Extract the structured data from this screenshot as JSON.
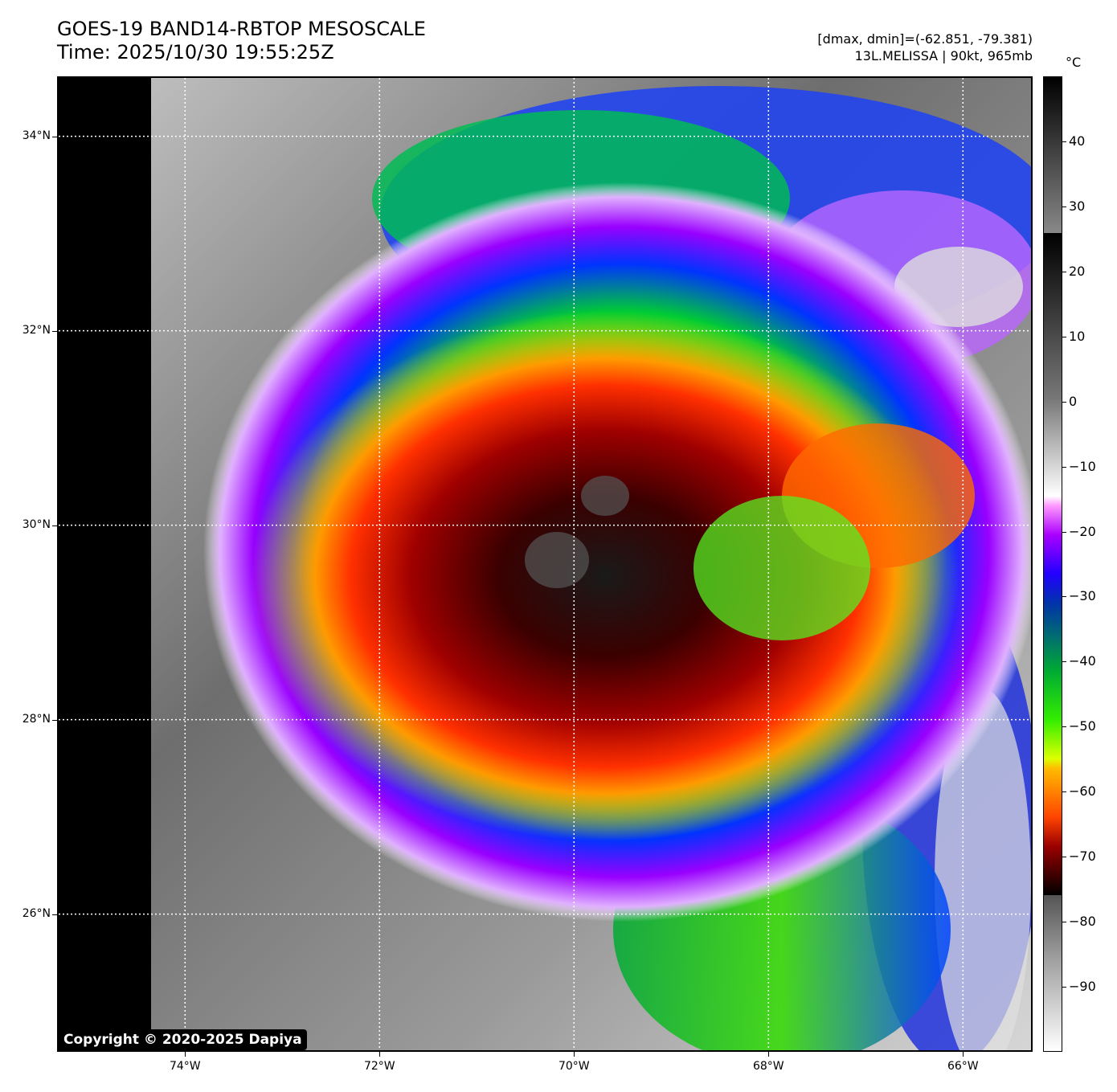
{
  "title": {
    "line1": "GOES-19 BAND14-RBTOP MESOSCALE",
    "line2": "Time: 2025/10/30 19:55:25Z"
  },
  "meta": {
    "range": "[dmax, dmin]=(-62.851, -79.381)",
    "storm": "13L.MELISSA | 90kt, 965mb"
  },
  "colorbar": {
    "unit": "°C",
    "labels": [
      "40",
      "30",
      "20",
      "10",
      "0",
      "−10",
      "−20",
      "−30",
      "−40",
      "−50",
      "−60",
      "−70",
      "−80",
      "−90"
    ],
    "values": [
      40,
      30,
      20,
      10,
      0,
      -10,
      -20,
      -30,
      -40,
      -50,
      -60,
      -70,
      -80,
      -90
    ],
    "range": [
      -100,
      50
    ]
  },
  "axes": {
    "lat_labels": [
      "34°N",
      "32°N",
      "30°N",
      "28°N",
      "26°N"
    ],
    "lat_values": [
      34,
      32,
      30,
      28,
      26
    ],
    "lon_labels": [
      "74°W",
      "72°W",
      "70°W",
      "68°W",
      "66°W"
    ],
    "lon_values": [
      -74,
      -72,
      -70,
      -68,
      -66
    ]
  },
  "copyright": "Copyright © 2020-2025 Dapiya"
}
